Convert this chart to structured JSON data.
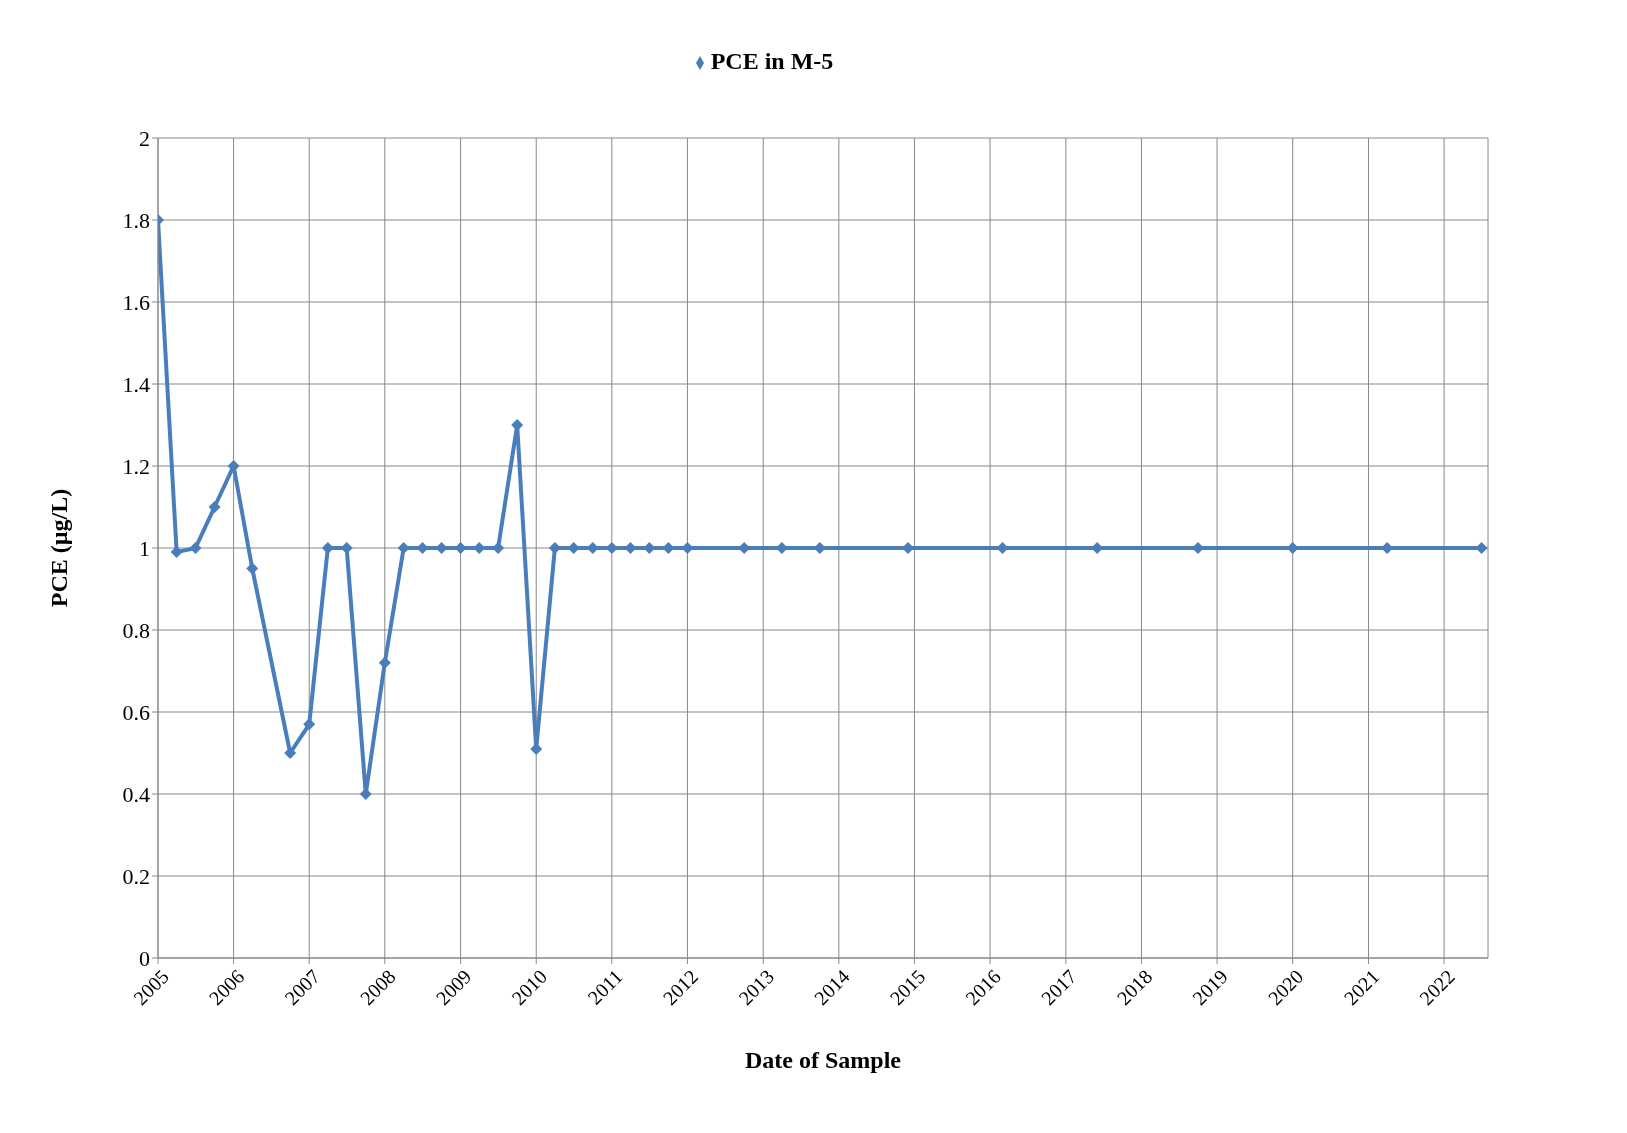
{
  "chart_data": {
    "type": "line",
    "xlabel": "Date of Sample",
    "ylabel": "PCE (µg/L)",
    "x": [
      "2005-01",
      "2005-04",
      "2005-07",
      "2005-10",
      "2006-01",
      "2006-04",
      "2006-10",
      "2007-01",
      "2007-04",
      "2007-07",
      "2007-10",
      "2008-01",
      "2008-04",
      "2008-07",
      "2008-10",
      "2009-01",
      "2009-04",
      "2009-07",
      "2009-10",
      "2010-01",
      "2010-04",
      "2010-07",
      "2010-10",
      "2011-01",
      "2011-04",
      "2011-07",
      "2011-10",
      "2012-01",
      "2012-10",
      "2013-04",
      "2013-10",
      "2014-12",
      "2016-03",
      "2017-06",
      "2018-10",
      "2020-01",
      "2021-04",
      "2022-07"
    ],
    "series": [
      {
        "name": "PCE in M-5",
        "color": "#4a7ebb",
        "values": [
          1.8,
          0.99,
          1,
          1.1,
          1.2,
          0.95,
          0.5,
          0.57,
          1,
          1,
          0.4,
          0.72,
          1,
          1,
          1,
          1,
          1,
          1,
          1.3,
          0.51,
          1,
          1,
          1,
          1,
          1,
          1,
          1,
          1,
          1,
          1,
          1,
          1,
          1,
          1,
          1,
          1,
          1,
          1
        ]
      }
    ],
    "xlim": [
      "2005",
      "2022-08"
    ],
    "xticks": [
      "2005",
      "2006",
      "2007",
      "2008",
      "2009",
      "2010",
      "2011",
      "2012",
      "2013",
      "2014",
      "2015",
      "2016",
      "2017",
      "2018",
      "2019",
      "2020",
      "2021",
      "2022"
    ],
    "ylim": [
      0,
      2
    ],
    "yticks": [
      0,
      0.2,
      0.4,
      0.6,
      0.8,
      1,
      1.2,
      1.4,
      1.6,
      1.8,
      2
    ],
    "grid": true,
    "legend": "top",
    "marker": "diamond",
    "line_style": "solid"
  }
}
